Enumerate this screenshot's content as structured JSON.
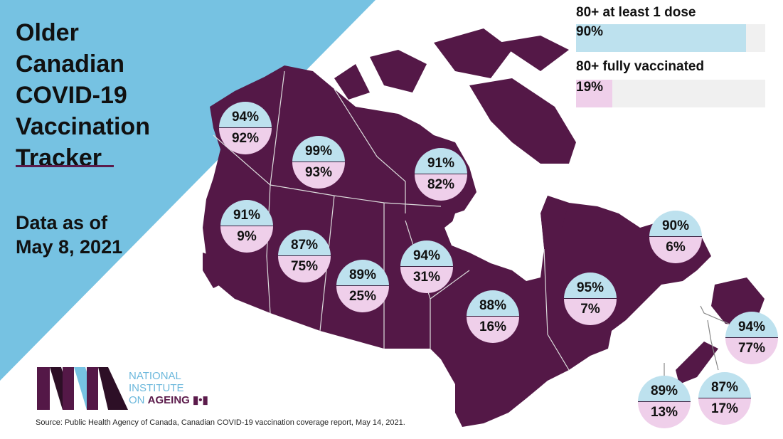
{
  "title": "Older\nCanadian\nCOVID-19\nVaccination\nTracker",
  "data_as_of": "Data as of\nMay 8, 2021",
  "national": {
    "at_least_one_label": "80+ at least 1 dose",
    "at_least_one_value": "90%",
    "at_least_one_pct": 90,
    "fully_label": "80+ fully vaccinated",
    "fully_value": "19%",
    "fully_pct": 19
  },
  "regions": [
    {
      "one_dose": "94%",
      "fully": "92%"
    },
    {
      "one_dose": "99%",
      "fully": "93%"
    },
    {
      "one_dose": "91%",
      "fully": "82%"
    },
    {
      "one_dose": "91%",
      "fully": "9%"
    },
    {
      "one_dose": "87%",
      "fully": "75%"
    },
    {
      "one_dose": "89%",
      "fully": "25%"
    },
    {
      "one_dose": "94%",
      "fully": "31%"
    },
    {
      "one_dose": "88%",
      "fully": "16%"
    },
    {
      "one_dose": "95%",
      "fully": "7%"
    },
    {
      "one_dose": "90%",
      "fully": "6%"
    },
    {
      "one_dose": "94%",
      "fully": "77%"
    },
    {
      "one_dose": "87%",
      "fully": "17%"
    },
    {
      "one_dose": "89%",
      "fully": "13%"
    }
  ],
  "logo": {
    "line1": "NATIONAL",
    "line2": "INSTITUTE",
    "line3a": "ON ",
    "line3b": "AGEING"
  },
  "source": "Source: Public Health Agency of Canada, Canadian COVID-19 vaccination coverage report, May 14, 2021.",
  "colors": {
    "map": "#541847",
    "one_dose": "#bde1ee",
    "fully": "#efcfea",
    "sky": "#76c2e2",
    "track": "#f0f0f0"
  }
}
